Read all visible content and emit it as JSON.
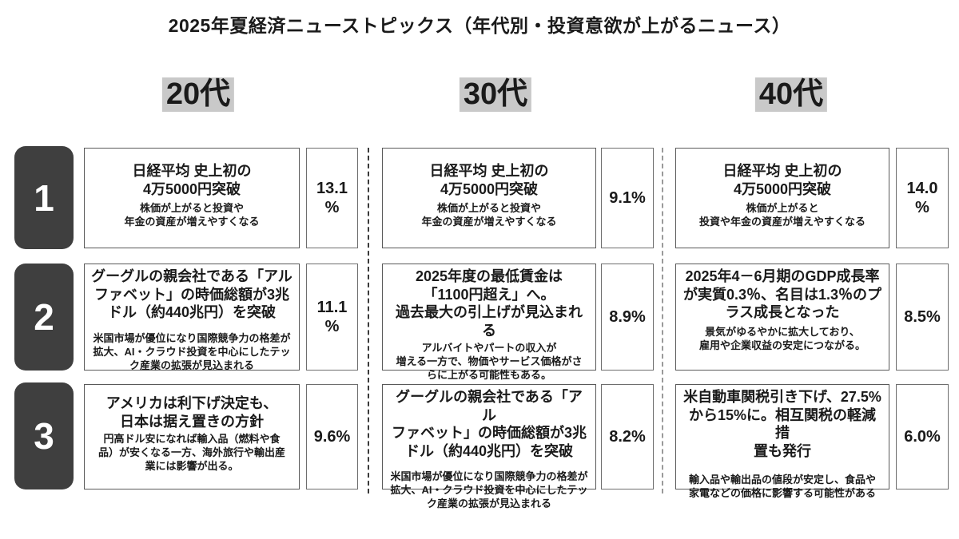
{
  "title": "2025年夏経済ニューストピックス（年代別・投資意欲が上がるニュース）",
  "colors": {
    "background": "#ffffff",
    "text": "#1a1a1a",
    "badge_bg": "#3f3f3f",
    "badge_text": "#ffffff",
    "header_highlight": "#c9c9c9",
    "card_border": "#595959",
    "divider_dark": "#3a3a3a",
    "divider_light": "#9a9a9a"
  },
  "ranks": [
    "1",
    "2",
    "3"
  ],
  "columns": [
    {
      "label": "20代",
      "items": [
        {
          "title": "日経平均 史上初の\n4万5000円突破",
          "desc": "株価が上がると投資や\n年金の資産が増えやすくなる",
          "pct": "13.1\n%"
        },
        {
          "title": "グーグルの親会社である「アル\nファベット」の時価総額が3兆\nドル（約440兆円）を突破",
          "desc": "米国市場が優位になり国際競争力の格差が\n拡大、AI・クラウド投資を中心にしたテッ\nク産業の拡張が見込まれる",
          "pct": "11.1\n%"
        },
        {
          "title": "アメリカは利下げ決定も、\n日本は据え置きの方針",
          "desc": "円高ドル安になれば輸入品（燃料や食\n品）が安くなる一方、海外旅行や輸出産\n業には影響が出る。",
          "pct": "9.6%"
        }
      ]
    },
    {
      "label": "30代",
      "items": [
        {
          "title": "日経平均 史上初の\n4万5000円突破",
          "desc": "株価が上がると投資や\n年金の資産が増えやすくなる",
          "pct": "9.1%"
        },
        {
          "title": "2025年度の最低賃金は\n「1100円超え」へ。\n過去最大の引上げが見込まれる",
          "desc": "アルバイトやパートの収入が\n増える一方で、物価やサービス価格がさ\nらに上がる可能性もある。",
          "pct": "8.9%"
        },
        {
          "title": "グーグルの親会社である「アル\nファベット」の時価総額が3兆\nドル（約440兆円）を突破",
          "desc": "米国市場が優位になり国際競争力の格差が\n拡大、AI・クラウド投資を中心にしたテッ\nク産業の拡張が見込まれる",
          "pct": "8.2%"
        }
      ]
    },
    {
      "label": "40代",
      "items": [
        {
          "title": "日経平均 史上初の\n4万5000円突破",
          "desc": "株価が上がると\n投資や年金の資産が増えやすくなる",
          "pct": "14.0\n%"
        },
        {
          "title": "2025年4－6月期のGDP成長率\nが実質0.3％、名目は1.3％のプ\nラス成長となった",
          "desc": "景気がゆるやかに拡大しており、\n雇用や企業収益の安定につながる。",
          "pct": "8.5%"
        },
        {
          "title": "米自動車関税引き下げ、27.5%\nから15%に。相互関税の軽減措\n置も発行",
          "desc": "輸入品や輸出品の値段が安定し、食品や\n家電などの価格に影響する可能性がある",
          "pct": "6.0%"
        }
      ]
    }
  ]
}
